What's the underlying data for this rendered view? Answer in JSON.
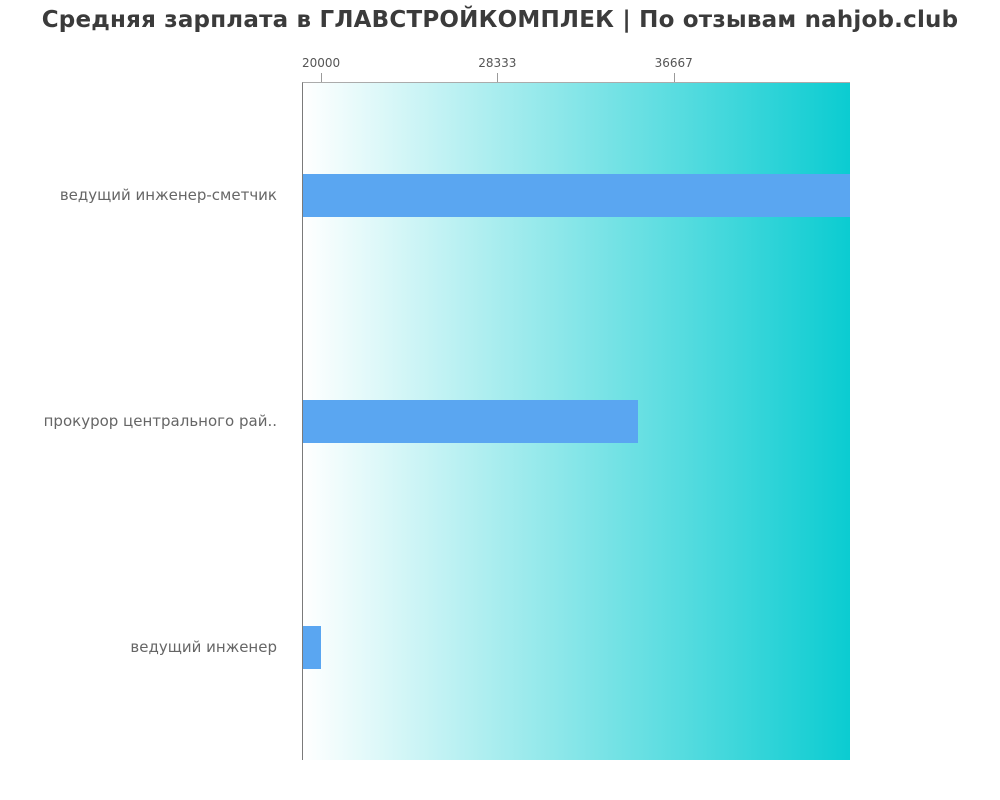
{
  "page": {
    "title": "Средняя зарплата в ГЛАВСТРОЙКОМПЛЕК | По отзывам nahjob.club"
  },
  "chart_data": {
    "type": "bar",
    "orientation": "horizontal",
    "title": "Средняя зарплата в ГЛАВСТРОЙКОМПЛЕК | По отзывам nahjob.club",
    "categories": [
      "ведущий инженер-сметчик",
      "прокурор центрального рай..",
      "ведущий инженер"
    ],
    "values": [
      45000,
      35000,
      20000
    ],
    "xticks": [
      20000,
      28333,
      36667
    ],
    "xlim": [
      19100,
      45000
    ],
    "xlabel": "",
    "ylabel": "",
    "grid": false,
    "legend": false,
    "tick_position": "top",
    "bar_color": "#5aa6f1",
    "plot_bg_gradient_left": "#ffffff",
    "plot_bg_gradient_right": "#0bccd1",
    "title_color": "#3b3b3b",
    "label_color": "#666666",
    "tick_label_color": "#555555"
  }
}
